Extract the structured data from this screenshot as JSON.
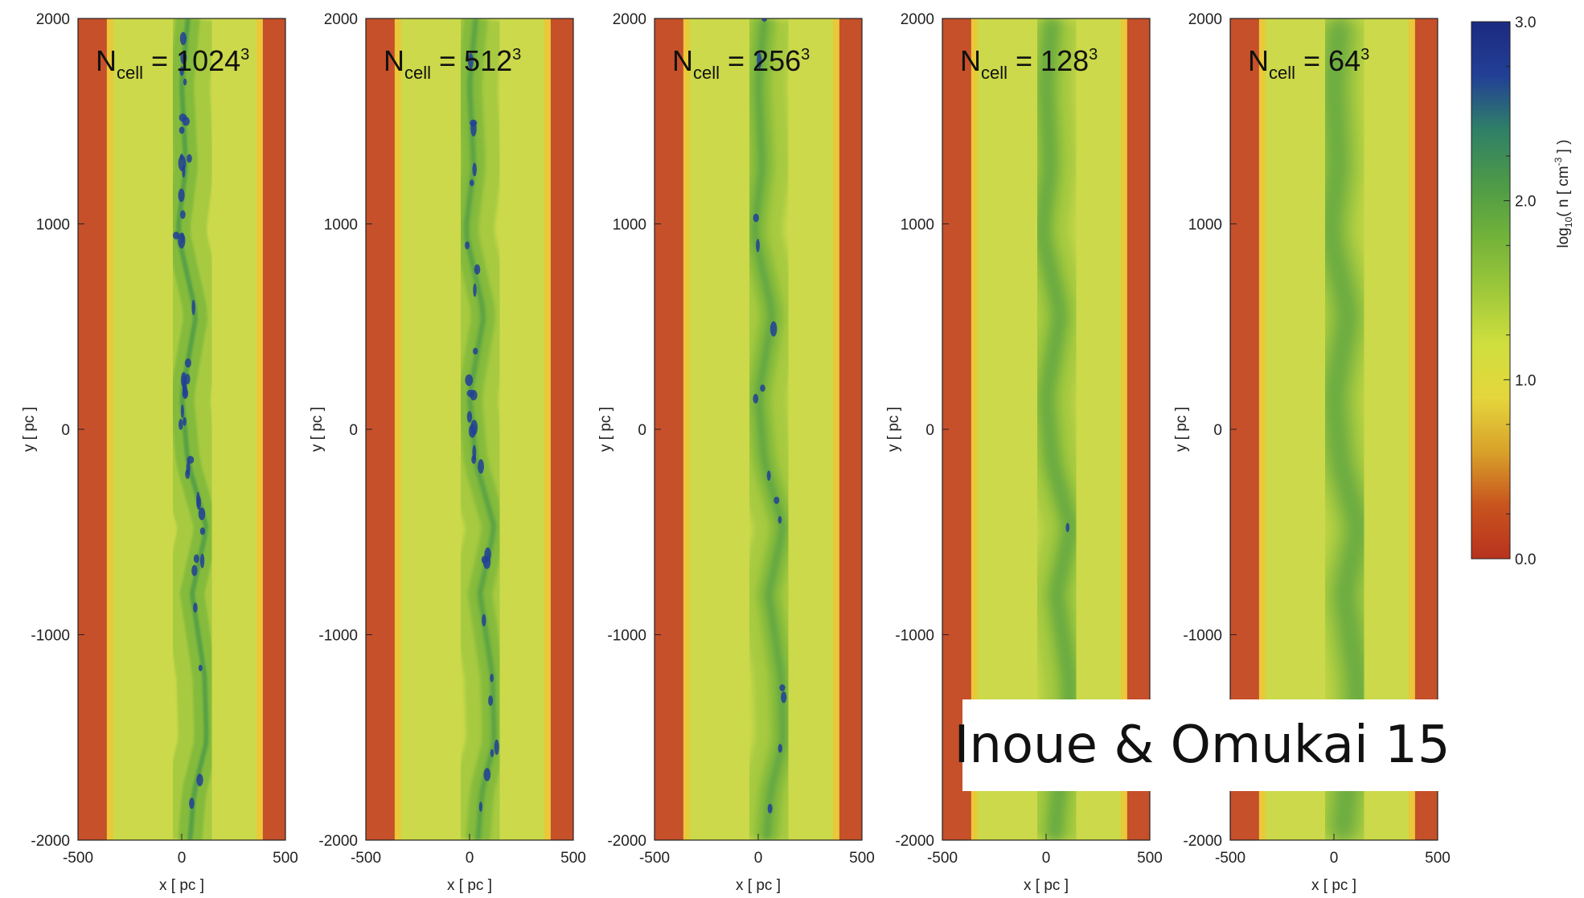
{
  "figure": {
    "panels": [
      {
        "title_main": "N",
        "title_sub": "cell",
        "title_rest": " = 1024",
        "title_sup": "3"
      },
      {
        "title_main": "N",
        "title_sub": "cell",
        "title_rest": " = 512",
        "title_sup": "3"
      },
      {
        "title_main": "N",
        "title_sub": "cell",
        "title_rest": " = 256",
        "title_sup": "3"
      },
      {
        "title_main": "N",
        "title_sub": "cell",
        "title_rest": " = 128",
        "title_sup": "3"
      },
      {
        "title_main": "N",
        "title_sub": "cell",
        "title_rest": " = 64",
        "title_sup": "3"
      }
    ],
    "x_axis_label": "x [ pc ]",
    "y_axis_label": "y [ pc ]",
    "x_ticks": [
      "-500",
      "0",
      "500"
    ],
    "y_ticks": [
      "2000",
      "1000",
      "0",
      "-1000",
      "-2000"
    ],
    "colorbar": {
      "label_main": "log",
      "label_sub": "10",
      "label_rest": "( n [ cm",
      "label_sup": "-3",
      "label_end": " ] )",
      "ticks": [
        "3.0",
        "2.0",
        "1.0",
        "0.0"
      ],
      "colors": [
        "#b8321e",
        "#c8541e",
        "#d9a22a",
        "#e4d63c",
        "#cfdf3e",
        "#9ec83a",
        "#72b23a",
        "#4c9a48",
        "#2f7f68",
        "#223f96",
        "#1c2a80"
      ]
    },
    "credit_text": "Inoue & Omukai 15"
  },
  "chart_data": {
    "type": "heatmap",
    "description_of_quantity": "log10( n [ cm-3 ] )",
    "panels": [
      {
        "resolution": 1024,
        "xlim": [
          -500,
          500
        ],
        "ylim": [
          -2000,
          2000
        ]
      },
      {
        "resolution": 512,
        "xlim": [
          -500,
          500
        ],
        "ylim": [
          -2000,
          2000
        ]
      },
      {
        "resolution": 256,
        "xlim": [
          -500,
          500
        ],
        "ylim": [
          -2000,
          2000
        ]
      },
      {
        "resolution": 128,
        "xlim": [
          -500,
          500
        ],
        "ylim": [
          -2000,
          2000
        ]
      },
      {
        "resolution": 64,
        "xlim": [
          -500,
          500
        ],
        "ylim": [
          -2000,
          2000
        ]
      }
    ],
    "colorbar_range": [
      0.0,
      3.0
    ],
    "xlabel": "x [ pc ]",
    "ylabel": "y [ pc ]"
  }
}
